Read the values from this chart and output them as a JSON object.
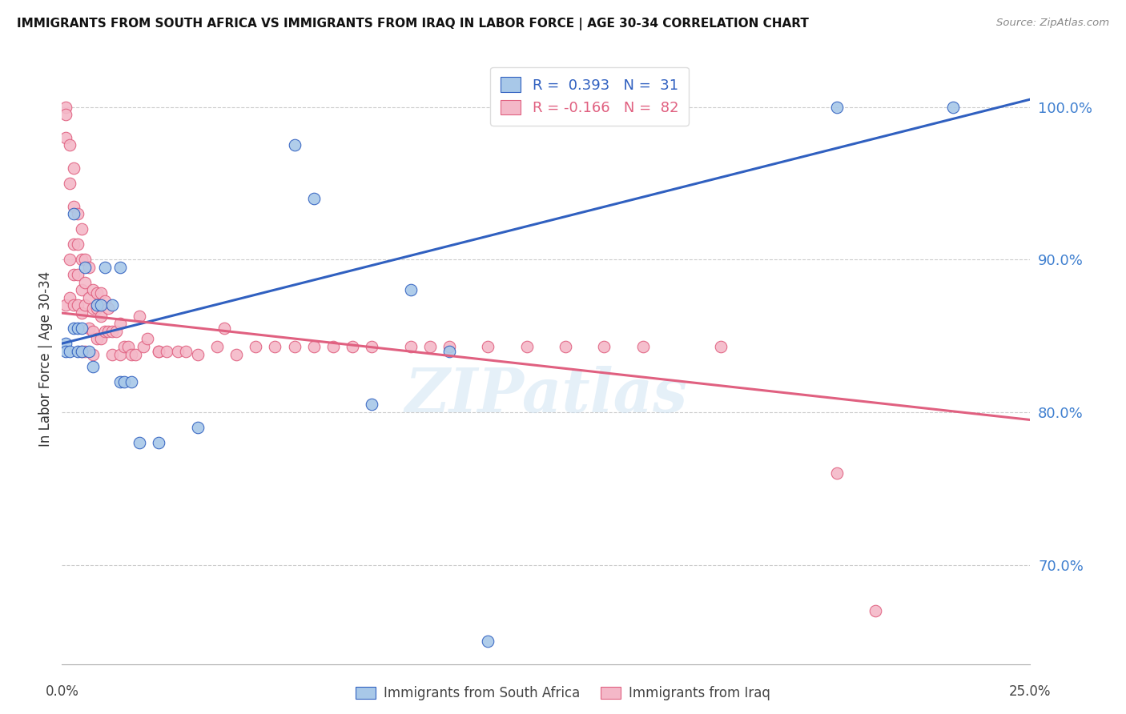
{
  "title": "IMMIGRANTS FROM SOUTH AFRICA VS IMMIGRANTS FROM IRAQ IN LABOR FORCE | AGE 30-34 CORRELATION CHART",
  "source": "Source: ZipAtlas.com",
  "ylabel": "In Labor Force | Age 30-34",
  "ylabel_tick_values": [
    0.7,
    0.8,
    0.9,
    1.0
  ],
  "xmin": 0.0,
  "xmax": 0.25,
  "ymin": 0.635,
  "ymax": 1.035,
  "color_blue": "#a8c8e8",
  "color_pink": "#f4b8c8",
  "color_line_blue": "#3060c0",
  "color_line_pink": "#e06080",
  "color_ytick": "#4080d0",
  "watermark": "ZIPatlas",
  "blue_line_x0": 0.0,
  "blue_line_y0": 0.845,
  "blue_line_x1": 0.25,
  "blue_line_y1": 1.005,
  "pink_line_x0": 0.0,
  "pink_line_y0": 0.865,
  "pink_line_x1": 0.25,
  "pink_line_y1": 0.795,
  "blue_x": [
    0.001,
    0.001,
    0.002,
    0.003,
    0.003,
    0.004,
    0.004,
    0.005,
    0.005,
    0.006,
    0.007,
    0.008,
    0.009,
    0.01,
    0.011,
    0.013,
    0.015,
    0.015,
    0.016,
    0.018,
    0.02,
    0.025,
    0.035,
    0.06,
    0.065,
    0.08,
    0.09,
    0.1,
    0.11,
    0.2,
    0.23
  ],
  "blue_y": [
    0.845,
    0.84,
    0.84,
    0.855,
    0.93,
    0.855,
    0.84,
    0.84,
    0.855,
    0.895,
    0.84,
    0.83,
    0.87,
    0.87,
    0.895,
    0.87,
    0.82,
    0.895,
    0.82,
    0.82,
    0.78,
    0.78,
    0.79,
    0.975,
    0.94,
    0.805,
    0.88,
    0.84,
    0.65,
    1.0,
    1.0
  ],
  "pink_x": [
    0.001,
    0.001,
    0.001,
    0.001,
    0.002,
    0.002,
    0.002,
    0.002,
    0.003,
    0.003,
    0.003,
    0.003,
    0.003,
    0.004,
    0.004,
    0.004,
    0.004,
    0.005,
    0.005,
    0.005,
    0.005,
    0.005,
    0.006,
    0.006,
    0.006,
    0.006,
    0.007,
    0.007,
    0.007,
    0.008,
    0.008,
    0.008,
    0.008,
    0.009,
    0.009,
    0.009,
    0.01,
    0.01,
    0.01,
    0.011,
    0.011,
    0.012,
    0.012,
    0.013,
    0.013,
    0.014,
    0.015,
    0.015,
    0.016,
    0.017,
    0.018,
    0.019,
    0.02,
    0.021,
    0.022,
    0.025,
    0.025,
    0.027,
    0.03,
    0.032,
    0.035,
    0.04,
    0.042,
    0.045,
    0.05,
    0.055,
    0.06,
    0.065,
    0.07,
    0.075,
    0.08,
    0.09,
    0.095,
    0.1,
    0.11,
    0.12,
    0.13,
    0.14,
    0.15,
    0.17,
    0.2,
    0.21
  ],
  "pink_y": [
    1.0,
    0.995,
    0.98,
    0.87,
    0.975,
    0.95,
    0.9,
    0.875,
    0.96,
    0.935,
    0.91,
    0.89,
    0.87,
    0.93,
    0.91,
    0.89,
    0.87,
    0.92,
    0.9,
    0.88,
    0.865,
    0.84,
    0.9,
    0.885,
    0.87,
    0.84,
    0.895,
    0.875,
    0.855,
    0.88,
    0.868,
    0.853,
    0.838,
    0.878,
    0.868,
    0.848,
    0.878,
    0.863,
    0.848,
    0.873,
    0.853,
    0.868,
    0.853,
    0.853,
    0.838,
    0.853,
    0.858,
    0.838,
    0.843,
    0.843,
    0.838,
    0.838,
    0.863,
    0.843,
    0.848,
    0.84,
    0.84,
    0.84,
    0.84,
    0.84,
    0.838,
    0.843,
    0.855,
    0.838,
    0.843,
    0.843,
    0.843,
    0.843,
    0.843,
    0.843,
    0.843,
    0.843,
    0.843,
    0.843,
    0.843,
    0.843,
    0.843,
    0.843,
    0.843,
    0.843,
    0.76,
    0.67
  ]
}
